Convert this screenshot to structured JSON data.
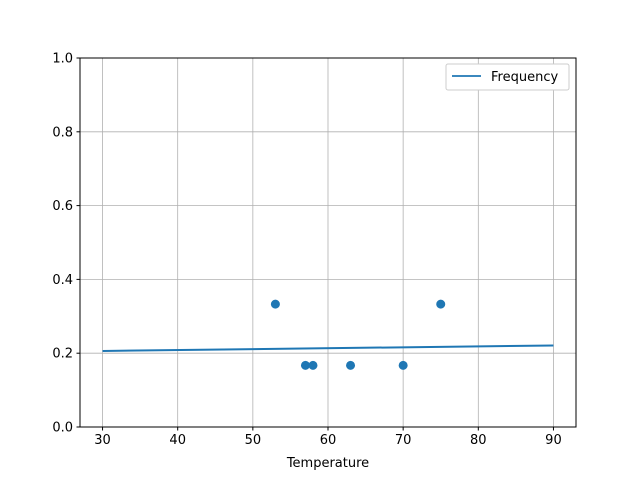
{
  "chart_data": {
    "type": "scatter",
    "title": "",
    "xlabel": "Temperature",
    "ylabel": "",
    "xlim": [
      27,
      93
    ],
    "ylim": [
      0,
      1
    ],
    "xticks": [
      30,
      40,
      50,
      60,
      70,
      80,
      90
    ],
    "yticks": [
      0.0,
      0.2,
      0.4,
      0.6,
      0.8,
      1.0
    ],
    "xtick_labels": [
      "30",
      "40",
      "50",
      "60",
      "70",
      "80",
      "90"
    ],
    "ytick_labels": [
      "0.0",
      "0.2",
      "0.4",
      "0.6",
      "0.8",
      "1.0"
    ],
    "grid": true,
    "legend_position": "top-right",
    "color": "#1f77b4",
    "points": [
      {
        "x": 53,
        "y": 0.333
      },
      {
        "x": 57,
        "y": 0.167
      },
      {
        "x": 58,
        "y": 0.167
      },
      {
        "x": 63,
        "y": 0.167
      },
      {
        "x": 70,
        "y": 0.167
      },
      {
        "x": 75,
        "y": 0.333
      }
    ],
    "line": {
      "name": "Frequency",
      "x": [
        30,
        90
      ],
      "y": [
        0.206,
        0.221
      ]
    }
  }
}
